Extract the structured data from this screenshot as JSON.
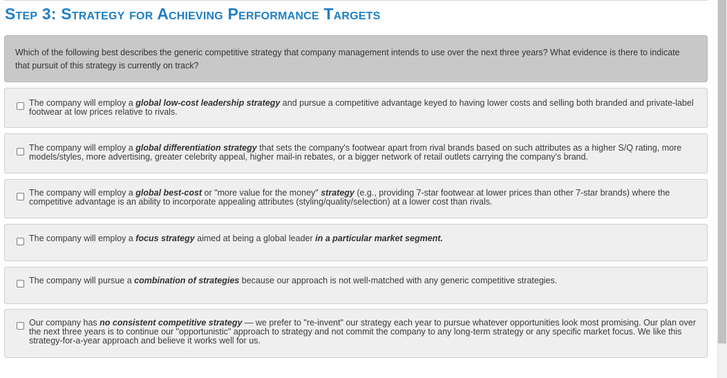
{
  "heading": "Step 3:  Strategy for Achieving Performance Targets",
  "question": "Which of the following best describes the generic competitive strategy that company management intends to use over the next three years? What evidence is there to indicate that pursuit of this strategy is currently on track?",
  "options": [
    {
      "parts": [
        {
          "t": "The company will employ a "
        },
        {
          "t": "global low-cost leadership strategy",
          "b": true
        },
        {
          "t": " and pursue a competitive advantage keyed to having lower costs and selling both branded and private-label footwear at low prices relative to rivals."
        }
      ],
      "checked": false
    },
    {
      "parts": [
        {
          "t": "The company will employ a "
        },
        {
          "t": "global differentiation strategy",
          "b": true
        },
        {
          "t": " that sets the company's footwear apart from rival brands based on such attributes as a higher S/Q rating, more models/styles, more advertising, greater celebrity appeal, higher mail-in rebates, or a bigger network of retail outlets carrying the company's brand."
        }
      ],
      "checked": false
    },
    {
      "parts": [
        {
          "t": "The company will employ a "
        },
        {
          "t": "global best-cost",
          "b": true
        },
        {
          "t": " or \"more value for the money\" "
        },
        {
          "t": "strategy",
          "b": true
        },
        {
          "t": " (e.g., providing 7-star footwear at lower prices than other 7-star brands) where the competitive advantage is an ability to incorporate appealing attributes (styling/quality/selection) at a lower cost than rivals."
        }
      ],
      "checked": false
    },
    {
      "parts": [
        {
          "t": "The company will employ a "
        },
        {
          "t": "focus strategy",
          "b": true
        },
        {
          "t": " aimed at being a global leader "
        },
        {
          "t": "in a particular market segment.",
          "b": true
        }
      ],
      "checked": false
    },
    {
      "parts": [
        {
          "t": "The company will pursue a "
        },
        {
          "t": "combination of strategies",
          "b": true
        },
        {
          "t": " because our approach is not well-matched with any generic competitive strategies."
        }
      ],
      "checked": false
    },
    {
      "parts": [
        {
          "t": "Our company has "
        },
        {
          "t": "no consistent competitive strategy",
          "b": true
        },
        {
          "t": " — we prefer to \"re-invent\" our strategy each year to pursue whatever opportunities look most promising. Our plan over the next three years is to continue our \"opportunistic\" approach to strategy and not commit the company to any long-term strategy or any specific market focus. We like this strategy-for-a-year approach and believe it works well for us."
        }
      ],
      "checked": false
    }
  ]
}
